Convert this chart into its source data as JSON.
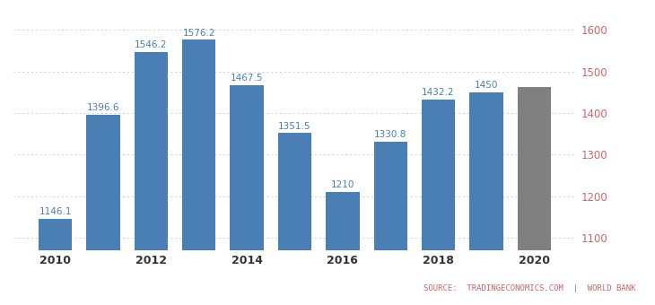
{
  "years": [
    2010,
    2011,
    2012,
    2013,
    2014,
    2015,
    2016,
    2017,
    2018,
    2019,
    2020
  ],
  "values": [
    1146.1,
    1396.6,
    1546.2,
    1576.2,
    1467.5,
    1351.5,
    1210.0,
    1330.8,
    1432.2,
    1450.0,
    1463.0
  ],
  "bar_colors": [
    "#4a7fb5",
    "#4a7fb5",
    "#4a7fb5",
    "#4a7fb5",
    "#4a7fb5",
    "#4a7fb5",
    "#4a7fb5",
    "#4a7fb5",
    "#4a7fb5",
    "#4a7fb5",
    "#808080"
  ],
  "labels": [
    "1146.1",
    "1396.6",
    "1546.2",
    "1576.2",
    "1467.5",
    "1351.5",
    "1210",
    "1330.8",
    "1432.2",
    "1450",
    ""
  ],
  "ylim": [
    1070,
    1650
  ],
  "yticks": [
    1100,
    1200,
    1300,
    1400,
    1500,
    1600
  ],
  "xticks": [
    2010,
    2012,
    2014,
    2016,
    2018,
    2020
  ],
  "source_text": "SOURCE:  TRADINGECONOMICS.COM  |  WORLD BANK",
  "background_color": "#ffffff",
  "grid_color": "#cccccc",
  "label_color_blue": "#4a7fb5",
  "label_color_gray": "#aaaaaa",
  "source_color": "#cc6666",
  "tick_label_color": "#cc6666"
}
